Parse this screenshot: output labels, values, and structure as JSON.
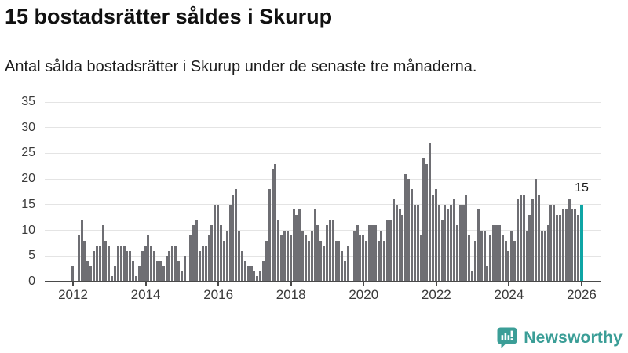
{
  "chart_data": {
    "type": "bar",
    "title": "15 bostadsrätter såldes i Skurup",
    "subtitle": "Antal sålda bostadsrätter i Skurup under de senaste tre månaderna.",
    "frequency": "monthly",
    "x_start": "2012-01",
    "x_tick_labels": [
      "2012",
      "2014",
      "2016",
      "2018",
      "2020",
      "2022",
      "2024",
      "2026"
    ],
    "y_ticks": [
      0,
      5,
      10,
      15,
      20,
      25,
      30,
      35
    ],
    "ylim": [
      0,
      35
    ],
    "grid": "horizontal",
    "legend": "none",
    "values": [
      3,
      0,
      9,
      12,
      8,
      4,
      3,
      6,
      7,
      7,
      11,
      8,
      7,
      1,
      3,
      7,
      7,
      7,
      6,
      6,
      4,
      1,
      3,
      6,
      7,
      9,
      7,
      6,
      4,
      4,
      3,
      5,
      6,
      7,
      7,
      4,
      2,
      5,
      0,
      9,
      11,
      12,
      6,
      7,
      7,
      9,
      11,
      15,
      15,
      11,
      8,
      10,
      15,
      17,
      18,
      10,
      6,
      4,
      3,
      3,
      2,
      1,
      2,
      4,
      8,
      18,
      22,
      23,
      12,
      9,
      10,
      10,
      9,
      14,
      13,
      14,
      10,
      9,
      8,
      10,
      14,
      11,
      8,
      7,
      11,
      12,
      12,
      8,
      8,
      6,
      4,
      7,
      0,
      10,
      11,
      9,
      9,
      8,
      11,
      11,
      11,
      8,
      10,
      8,
      12,
      12,
      16,
      15,
      14,
      13,
      21,
      20,
      18,
      15,
      15,
      9,
      24,
      23,
      27,
      17,
      18,
      15,
      12,
      15,
      14,
      15,
      16,
      11,
      15,
      15,
      17,
      9,
      2,
      8,
      14,
      10,
      10,
      3,
      9,
      11,
      11,
      11,
      9,
      8,
      6,
      10,
      8,
      16,
      17,
      17,
      10,
      13,
      16,
      20,
      17,
      10,
      10,
      11,
      15,
      15,
      13,
      13,
      14,
      14,
      16,
      14,
      14,
      13,
      15
    ],
    "highlight": {
      "index": 168,
      "value": 15,
      "label": "15"
    },
    "colors": {
      "bar": "#6e6e73",
      "highlight": "#0fa5a5",
      "grid": "#e4e4e4",
      "axis": "#4a4a4a"
    }
  },
  "footer": {
    "brand": "Newsworthy",
    "logo_icon": "newsworthy-speech-bubble-chart-icon",
    "brand_color": "#3b9e97"
  }
}
